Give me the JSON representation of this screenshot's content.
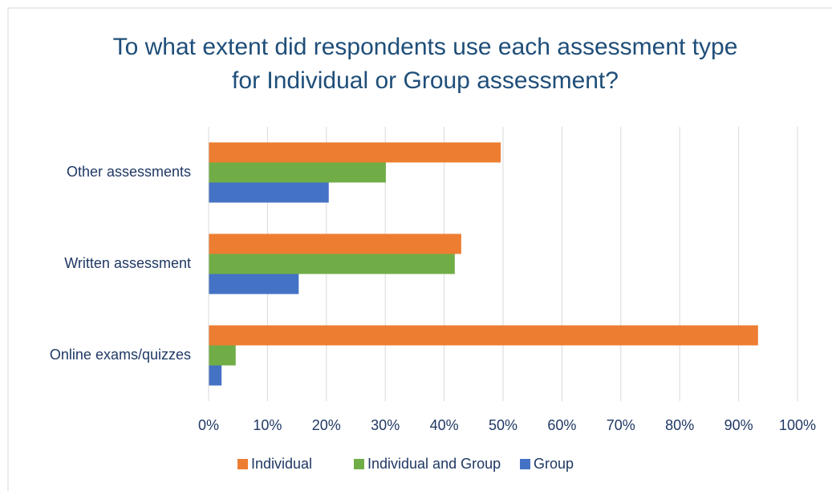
{
  "chart_data": {
    "type": "hbar",
    "title": "To what extent did respondents use each assessment type for Individual or Group assessment?",
    "categories": [
      "Other assessments",
      "Written assessment",
      "Online exams/quizzes"
    ],
    "series": [
      {
        "name": "Individual",
        "color": "#ed7d31",
        "values": [
          49.6,
          42.9,
          93.3
        ]
      },
      {
        "name": "Individual and Group",
        "color": "#70ad47",
        "values": [
          30.1,
          41.8,
          4.6
        ]
      },
      {
        "name": "Group",
        "color": "#4472c4",
        "values": [
          20.4,
          15.3,
          2.2
        ]
      }
    ],
    "xlim": [
      0,
      100
    ],
    "xticks": [
      {
        "value": 0,
        "label": "0%"
      },
      {
        "value": 10,
        "label": "10%"
      },
      {
        "value": 20,
        "label": "20%"
      },
      {
        "value": 30,
        "label": "30%"
      },
      {
        "value": 40,
        "label": "40%"
      },
      {
        "value": 50,
        "label": "50%"
      },
      {
        "value": 60,
        "label": "60%"
      },
      {
        "value": 70,
        "label": "70%"
      },
      {
        "value": 80,
        "label": "80%"
      },
      {
        "value": 90,
        "label": "90%"
      },
      {
        "value": 100,
        "label": "100%"
      }
    ],
    "grid": true,
    "legend": "bottom"
  }
}
